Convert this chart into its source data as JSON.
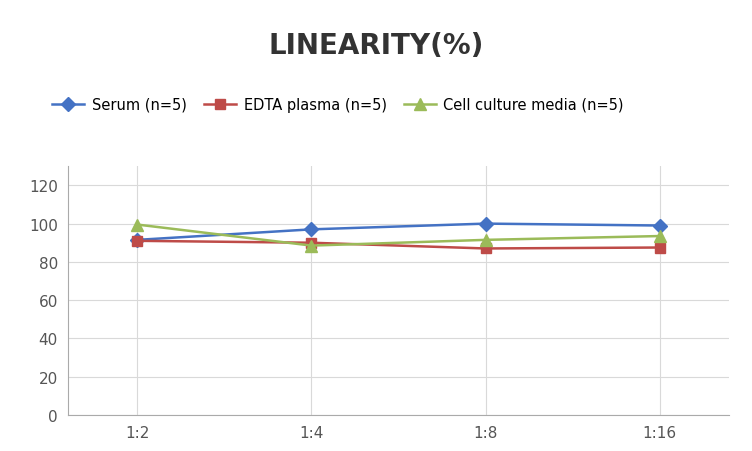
{
  "title": "LINEARITY(%)",
  "x_labels": [
    "1:2",
    "1:4",
    "1:8",
    "1:16"
  ],
  "x_positions": [
    0,
    1,
    2,
    3
  ],
  "series": [
    {
      "label": "Serum (n=5)",
      "values": [
        91.5,
        97.0,
        100.0,
        99.0
      ],
      "color": "#4472C4",
      "marker": "D",
      "markersize": 7,
      "linewidth": 1.8
    },
    {
      "label": "EDTA plasma (n=5)",
      "values": [
        91.0,
        90.0,
        87.0,
        87.5
      ],
      "color": "#BE4B48",
      "marker": "s",
      "markersize": 7,
      "linewidth": 1.8
    },
    {
      "label": "Cell culture media (n=5)",
      "values": [
        99.5,
        88.5,
        91.5,
        93.5
      ],
      "color": "#9BBB59",
      "marker": "^",
      "markersize": 8,
      "linewidth": 1.8
    }
  ],
  "ylim": [
    0,
    130
  ],
  "yticks": [
    0,
    20,
    40,
    60,
    80,
    100,
    120
  ],
  "grid_color": "#D9D9D9",
  "background_color": "#FFFFFF",
  "title_fontsize": 20,
  "title_fontweight": "bold",
  "legend_fontsize": 10.5,
  "tick_fontsize": 11
}
